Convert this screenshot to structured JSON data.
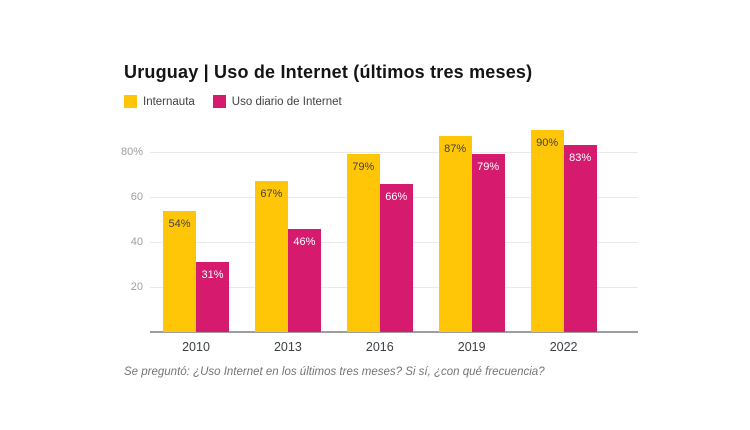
{
  "title": "Uruguay | Uso de Internet (últimos tres meses)",
  "legend": {
    "items": [
      {
        "label": "Internauta",
        "color": "#FFC608"
      },
      {
        "label": "Uso diario de Internet",
        "color": "#D61A6E"
      }
    ]
  },
  "footer": "Se preguntó: ¿Uso Internet en los últimos tres meses? Si sí, ¿con qué frecuencia?",
  "chart_data": {
    "type": "bar",
    "title": "Uruguay | Uso de Internet (últimos tres meses)",
    "categories": [
      "2010",
      "2013",
      "2016",
      "2019",
      "2022"
    ],
    "series": [
      {
        "name": "Internauta",
        "color": "#FFC608",
        "label_color": "#424242",
        "values": [
          54,
          67,
          79,
          87,
          90
        ]
      },
      {
        "name": "Uso diario de Internet",
        "color": "#D61A6E",
        "label_color": "#FFFFFF",
        "values": [
          31,
          46,
          66,
          79,
          83
        ]
      }
    ],
    "value_suffix": "%",
    "xlabel": "",
    "ylabel": "",
    "ylim": [
      0,
      100
    ],
    "yticks": [
      {
        "value": 20,
        "label": "20"
      },
      {
        "value": 40,
        "label": "40"
      },
      {
        "value": 60,
        "label": "60"
      },
      {
        "value": 80,
        "label": "80%"
      }
    ],
    "grid": true,
    "legend_position": "top-left",
    "colors": {
      "gridline": "#e9e9e9",
      "baseline": "#9e9e9e",
      "ytick_text": "#9e9e9e",
      "xtick_text": "#3c4043",
      "background": "#ffffff"
    }
  }
}
